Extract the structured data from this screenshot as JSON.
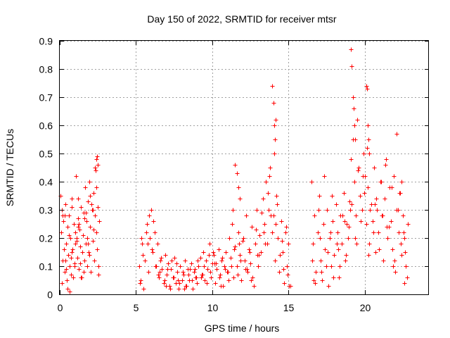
{
  "chart_data": {
    "type": "scatter",
    "title": "Day 150 of 2022, SRMTID for receiver mtsr",
    "xlabel": "GPS time / hours",
    "ylabel": "SRMTID / TECUs",
    "xlim": [
      0,
      24.2
    ],
    "ylim": [
      0,
      0.9
    ],
    "xticks": [
      0,
      5,
      10,
      15,
      20
    ],
    "xtick_labels": [
      "0",
      "5",
      "10",
      "15",
      "20"
    ],
    "yticks": [
      0,
      0.1,
      0.2,
      0.3,
      0.4,
      0.5,
      0.6,
      0.7,
      0.8,
      0.9
    ],
    "ytick_labels": [
      "0",
      "0.1",
      "0.2",
      "0.3",
      "0.4",
      "0.5",
      "0.6",
      "0.7",
      "0.8",
      "0.9"
    ],
    "grid": true,
    "marker": "+",
    "marker_color": "#ff0000",
    "series": [
      {
        "name": "SRMTID",
        "x": [
          0.05,
          0.1,
          0.15,
          0.2,
          0.25,
          0.3,
          0.35,
          0.4,
          0.45,
          0.5,
          0.55,
          0.6,
          0.65,
          0.7,
          0.75,
          0.8,
          0.85,
          0.9,
          0.95,
          1.0,
          1.05,
          1.1,
          1.15,
          1.2,
          1.25,
          1.3,
          1.35,
          1.4,
          1.45,
          1.5,
          1.55,
          1.6,
          1.65,
          1.7,
          1.75,
          1.8,
          1.85,
          1.9,
          1.95,
          2.0,
          2.05,
          2.1,
          2.15,
          2.2,
          2.25,
          2.3,
          2.35,
          2.4,
          2.45,
          2.5,
          2.55,
          2.6,
          0.12,
          0.28,
          0.42,
          0.58,
          0.72,
          0.88,
          1.02,
          1.18,
          1.32,
          1.48,
          1.62,
          1.78,
          1.92,
          2.08,
          2.22,
          2.38,
          2.52,
          0.2,
          0.5,
          0.8,
          1.1,
          1.4,
          1.7,
          2.0,
          2.3,
          0.35,
          0.65,
          0.95,
          1.25,
          1.55,
          1.85,
          2.15,
          2.45,
          5.2,
          5.3,
          5.4,
          5.5,
          5.6,
          5.7,
          5.8,
          5.9,
          6.0,
          6.1,
          6.2,
          6.3,
          6.4,
          6.5,
          6.6,
          6.7,
          6.8,
          6.9,
          7.0,
          7.1,
          7.2,
          7.3,
          7.4,
          7.5,
          7.6,
          7.7,
          7.8,
          7.9,
          8.0,
          8.1,
          8.2,
          8.3,
          8.4,
          8.5,
          8.6,
          8.7,
          8.8,
          8.9,
          9.0,
          9.1,
          9.2,
          9.3,
          9.4,
          9.5,
          9.6,
          9.7,
          9.8,
          9.9,
          10.0,
          10.1,
          10.2,
          10.3,
          10.4,
          10.5,
          10.6,
          10.7,
          10.8,
          10.9,
          11.0,
          11.1,
          11.2,
          11.3,
          11.4,
          11.5,
          11.6,
          11.7,
          11.8,
          11.9,
          12.0,
          12.1,
          12.2,
          12.3,
          12.4,
          12.5,
          12.6,
          12.7,
          12.8,
          12.9,
          13.0,
          13.1,
          13.2,
          13.3,
          13.4,
          13.5,
          13.6,
          13.7,
          13.8,
          13.9,
          14.0,
          14.1,
          14.2,
          14.3,
          14.4,
          14.5,
          14.6,
          14.7,
          14.8,
          14.9,
          15.0,
          15.1,
          5.25,
          5.45,
          5.65,
          5.85,
          6.05,
          6.25,
          6.45,
          6.65,
          6.85,
          7.05,
          7.25,
          7.45,
          7.65,
          7.85,
          8.05,
          8.25,
          8.45,
          8.65,
          8.85,
          9.05,
          9.25,
          9.45,
          9.65,
          9.85,
          10.05,
          10.25,
          10.45,
          10.65,
          10.85,
          11.05,
          11.25,
          11.45,
          11.65,
          11.85,
          12.05,
          12.25,
          12.45,
          12.65,
          12.85,
          13.05,
          13.25,
          13.45,
          13.65,
          13.85,
          14.05,
          14.25,
          14.45,
          14.65,
          14.85,
          15.05,
          5.35,
          5.75,
          6.15,
          6.55,
          6.95,
          7.35,
          7.75,
          8.15,
          8.55,
          8.95,
          9.35,
          9.75,
          10.15,
          10.55,
          10.95,
          11.35,
          11.75,
          12.15,
          12.55,
          12.95,
          13.35,
          13.75,
          14.15,
          14.55,
          14.95,
          16.5,
          16.6,
          16.7,
          16.8,
          16.9,
          17.0,
          17.1,
          17.2,
          17.3,
          17.4,
          17.5,
          17.6,
          17.7,
          17.8,
          17.9,
          18.0,
          18.1,
          18.2,
          18.3,
          18.4,
          18.5,
          18.6,
          18.7,
          18.8,
          18.9,
          19.0,
          19.1,
          19.2,
          19.3,
          19.4,
          19.5,
          19.6,
          19.7,
          19.8,
          19.9,
          20.0,
          20.1,
          20.2,
          20.3,
          20.4,
          20.5,
          20.6,
          20.7,
          20.8,
          20.9,
          21.0,
          21.1,
          21.2,
          21.3,
          21.4,
          21.5,
          21.6,
          21.7,
          21.8,
          21.9,
          22.0,
          22.1,
          22.2,
          22.3,
          22.4,
          22.5,
          22.6,
          22.7,
          22.8,
          16.55,
          16.75,
          16.95,
          17.15,
          17.35,
          17.55,
          17.75,
          17.95,
          18.15,
          18.35,
          18.55,
          18.75,
          18.95,
          19.15,
          19.35,
          19.55,
          19.75,
          19.95,
          20.15,
          20.35,
          20.55,
          20.75,
          20.95,
          21.15,
          21.35,
          21.55,
          21.75,
          21.95,
          22.15,
          22.35,
          22.55,
          22.75,
          16.65,
          17.05,
          17.45,
          17.85,
          18.25,
          18.65,
          19.05,
          19.45,
          19.85,
          20.25,
          20.65,
          21.05,
          21.45,
          21.85,
          22.25,
          22.65,
          19.1,
          19.15,
          19.2,
          19.25,
          19.3,
          19.35,
          20.1,
          20.15,
          20.2,
          20.25,
          20.3,
          13.9,
          14.0,
          14.05,
          14.1,
          14.15,
          2.4,
          2.5,
          1.2,
          0.8,
          0.3,
          0.1,
          22.1,
          22.4,
          22.6,
          11.5,
          11.6,
          11.7,
          11.8
        ],
        "y": [
          0.35,
          0.22,
          0.3,
          0.12,
          0.26,
          0.08,
          0.32,
          0.18,
          0.05,
          0.24,
          0.14,
          0.28,
          0.1,
          0.2,
          0.07,
          0.34,
          0.16,
          0.25,
          0.11,
          0.22,
          0.42,
          0.19,
          0.13,
          0.27,
          0.09,
          0.23,
          0.17,
          0.31,
          0.06,
          0.21,
          0.29,
          0.12,
          0.38,
          0.18,
          0.26,
          0.1,
          0.33,
          0.15,
          0.4,
          0.24,
          0.08,
          0.3,
          0.19,
          0.36,
          0.12,
          0.28,
          0.44,
          0.22,
          0.16,
          0.31,
          0.07,
          0.26,
          0.04,
          0.16,
          0.09,
          0.21,
          0.13,
          0.06,
          0.18,
          0.24,
          0.11,
          0.15,
          0.27,
          0.2,
          0.14,
          0.32,
          0.23,
          0.38,
          0.1,
          0.28,
          0.02,
          0.15,
          0.2,
          0.06,
          0.29,
          0.35,
          0.45,
          0.12,
          0.01,
          0.1,
          0.25,
          0.08,
          0.18,
          0.3,
          0.49,
          0.1,
          0.05,
          0.18,
          0.02,
          0.12,
          0.25,
          0.08,
          0.2,
          0.3,
          0.15,
          0.22,
          0.1,
          0.18,
          0.06,
          0.12,
          0.09,
          0.04,
          0.14,
          0.07,
          0.11,
          0.03,
          0.09,
          0.06,
          0.13,
          0.04,
          0.08,
          0.02,
          0.1,
          0.05,
          0.07,
          0.12,
          0.03,
          0.09,
          0.05,
          0.11,
          0.02,
          0.08,
          0.06,
          0.04,
          0.1,
          0.13,
          0.07,
          0.15,
          0.05,
          0.12,
          0.09,
          0.18,
          0.06,
          0.11,
          0.14,
          0.04,
          0.09,
          0.16,
          0.07,
          0.12,
          0.03,
          0.1,
          0.15,
          0.08,
          0.2,
          0.13,
          0.25,
          0.06,
          0.17,
          0.1,
          0.22,
          0.14,
          0.05,
          0.19,
          0.12,
          0.28,
          0.08,
          0.16,
          0.11,
          0.24,
          0.03,
          0.18,
          0.3,
          0.1,
          0.21,
          0.15,
          0.34,
          0.25,
          0.4,
          0.18,
          0.3,
          0.45,
          0.22,
          0.28,
          0.12,
          0.35,
          0.2,
          0.08,
          0.26,
          0.15,
          0.04,
          0.22,
          0.1,
          0.18,
          0.03,
          0.04,
          0.14,
          0.22,
          0.28,
          0.16,
          0.1,
          0.07,
          0.13,
          0.05,
          0.09,
          0.02,
          0.06,
          0.11,
          0.04,
          0.08,
          0.03,
          0.07,
          0.05,
          0.09,
          0.12,
          0.06,
          0.1,
          0.04,
          0.08,
          0.15,
          0.11,
          0.06,
          0.13,
          0.09,
          0.05,
          0.1,
          0.16,
          0.07,
          0.12,
          0.2,
          0.09,
          0.15,
          0.06,
          0.23,
          0.14,
          0.29,
          0.18,
          0.36,
          0.28,
          0.5,
          0.32,
          0.14,
          0.09,
          0.24,
          0.03,
          0.2,
          0.18,
          0.26,
          0.08,
          0.03,
          0.12,
          0.05,
          0.02,
          0.09,
          0.06,
          0.07,
          0.14,
          0.11,
          0.03,
          0.08,
          0.3,
          0.18,
          0.09,
          0.05,
          0.14,
          0.22,
          0.42,
          0.25,
          0.19,
          0.07,
          0.4,
          0.18,
          0.28,
          0.08,
          0.22,
          0.35,
          0.12,
          0.05,
          0.25,
          0.16,
          0.3,
          0.03,
          0.2,
          0.1,
          0.26,
          0.14,
          0.32,
          0.22,
          0.06,
          0.28,
          0.18,
          0.36,
          0.12,
          0.25,
          0.2,
          0.33,
          0.48,
          0.55,
          0.4,
          0.28,
          0.62,
          0.45,
          0.35,
          0.3,
          0.5,
          0.42,
          0.25,
          0.38,
          0.18,
          0.32,
          0.26,
          0.45,
          0.15,
          0.3,
          0.22,
          0.4,
          0.28,
          0.12,
          0.34,
          0.48,
          0.2,
          0.38,
          0.26,
          0.16,
          0.42,
          0.08,
          0.3,
          0.22,
          0.36,
          0.14,
          0.28,
          0.2,
          0.1,
          0.25,
          0.12,
          0.04,
          0.3,
          0.08,
          0.42,
          0.15,
          0.22,
          0.06,
          0.18,
          0.1,
          0.28,
          0.14,
          0.24,
          0.32,
          0.2,
          0.44,
          0.26,
          0.36,
          0.52,
          0.3,
          0.22,
          0.34,
          0.16,
          0.28,
          0.46,
          0.24,
          0.38,
          0.12,
          0.3,
          0.18,
          0.22,
          0.06,
          0.05,
          0.2,
          0.1,
          0.35,
          0.16,
          0.26,
          0.3,
          0.18,
          0.42,
          0.14,
          0.32,
          0.4,
          0.24,
          0.1,
          0.36,
          0.15,
          0.87,
          0.81,
          0.7,
          0.66,
          0.6,
          0.55,
          0.74,
          0.73,
          0.6,
          0.55,
          0.5,
          0.74,
          0.68,
          0.6,
          0.55,
          0.62,
          0.48,
          0.46,
          0.34,
          0.31,
          0.28,
          0.22,
          0.57,
          0.4,
          0.04,
          0.46,
          0.43,
          0.38,
          0.34
        ]
      }
    ]
  }
}
